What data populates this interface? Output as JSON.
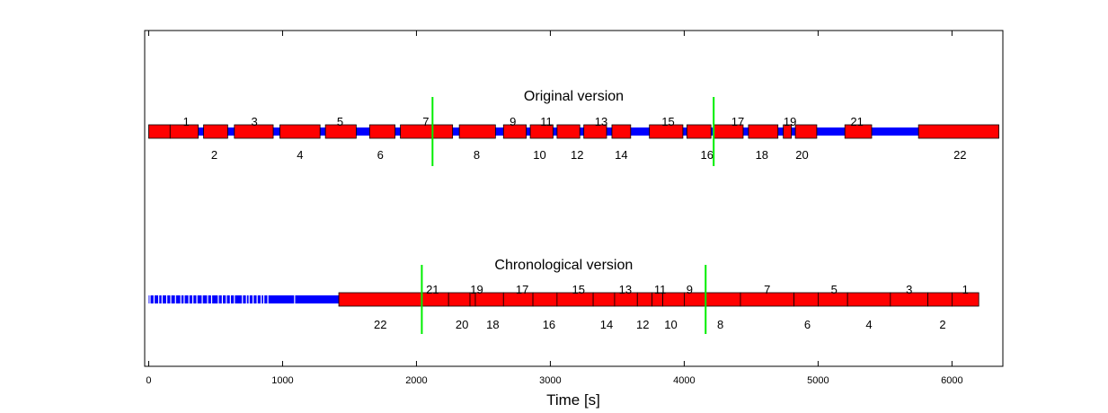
{
  "chart_data": {
    "type": "timeline",
    "xlabel": "Time [s]",
    "xlim": [
      -30,
      6380
    ],
    "xticks": [
      0,
      1000,
      2000,
      3000,
      4000,
      5000,
      6000
    ],
    "xtick_labels": [
      "0",
      "1000",
      "2000",
      "3000",
      "4000",
      "5000",
      "6000"
    ],
    "colors": {
      "segment": "#ff0000",
      "gap": "#0000ff",
      "marker": "#00ee00",
      "frame": "#000000",
      "background": "#ffffff"
    },
    "tracks": [
      {
        "name": "Original version",
        "extent": [
          0,
          6350
        ],
        "segments": [
          {
            "id": "1",
            "start": 0,
            "end": 160
          },
          {
            "id": "2",
            "start": 160,
            "end": 370
          },
          {
            "id": "3",
            "start": 410,
            "end": 590
          },
          {
            "id": "4",
            "start": 640,
            "end": 930
          },
          {
            "id": "5",
            "start": 980,
            "end": 1280
          },
          {
            "id": "6",
            "start": 1320,
            "end": 1550
          },
          {
            "id": "7",
            "start": 1650,
            "end": 1840
          },
          {
            "id": "8",
            "start": 1880,
            "end": 2270
          },
          {
            "id": "9",
            "start": 2320,
            "end": 2590
          },
          {
            "id": "10",
            "start": 2650,
            "end": 2820
          },
          {
            "id": "11",
            "start": 2850,
            "end": 3020
          },
          {
            "id": "12",
            "start": 3050,
            "end": 3220
          },
          {
            "id": "13",
            "start": 3250,
            "end": 3420
          },
          {
            "id": "14",
            "start": 3460,
            "end": 3600
          },
          {
            "id": "15",
            "start": 3740,
            "end": 3990
          },
          {
            "id": "16",
            "start": 4020,
            "end": 4200
          },
          {
            "id": "17",
            "start": 4220,
            "end": 4440
          },
          {
            "id": "18",
            "start": 4480,
            "end": 4700
          },
          {
            "id": "19",
            "start": 4740,
            "end": 4800
          },
          {
            "id": "20",
            "start": 4830,
            "end": 4990
          },
          {
            "id": "21",
            "start": 5200,
            "end": 5400
          },
          {
            "id": "22",
            "start": 5750,
            "end": 6350
          }
        ],
        "labels_above": [
          {
            "text": "1",
            "x": 280
          },
          {
            "text": "3",
            "x": 790
          },
          {
            "text": "5",
            "x": 1430
          },
          {
            "text": "7",
            "x": 2070
          },
          {
            "text": "9",
            "x": 2720
          },
          {
            "text": "11",
            "x": 2970
          },
          {
            "text": "13",
            "x": 3380
          },
          {
            "text": "15",
            "x": 3880
          },
          {
            "text": "17",
            "x": 4400
          },
          {
            "text": "19",
            "x": 4790
          },
          {
            "text": "21",
            "x": 5290
          }
        ],
        "labels_below": [
          {
            "text": "2",
            "x": 490
          },
          {
            "text": "4",
            "x": 1130
          },
          {
            "text": "6",
            "x": 1730
          },
          {
            "text": "8",
            "x": 2450
          },
          {
            "text": "10",
            "x": 2920
          },
          {
            "text": "12",
            "x": 3200
          },
          {
            "text": "14",
            "x": 3530
          },
          {
            "text": "16",
            "x": 4170
          },
          {
            "text": "18",
            "x": 4580
          },
          {
            "text": "20",
            "x": 4880
          },
          {
            "text": "22",
            "x": 6060
          }
        ],
        "markers": [
          2120,
          4220
        ]
      },
      {
        "name": "Chronological version",
        "extent": [
          0,
          6200
        ],
        "gap_ticks": [
          10,
          40,
          75,
          100,
          135,
          165,
          200,
          240,
          265,
          300,
          330,
          360,
          400,
          440,
          470,
          520,
          550,
          580,
          610,
          640,
          700,
          730,
          750,
          780,
          810,
          840,
          860,
          890,
          1090
        ],
        "segments": [
          {
            "id": "22",
            "start": 1420,
            "end": 2240
          },
          {
            "id": "21",
            "start": 2240,
            "end": 2400
          },
          {
            "id": "20",
            "start": 2400,
            "end": 2440
          },
          {
            "id": "19",
            "start": 2440,
            "end": 2650
          },
          {
            "id": "18",
            "start": 2650,
            "end": 2870
          },
          {
            "id": "17",
            "start": 2870,
            "end": 3050
          },
          {
            "id": "16",
            "start": 3050,
            "end": 3320
          },
          {
            "id": "15",
            "start": 3320,
            "end": 3480
          },
          {
            "id": "14",
            "start": 3480,
            "end": 3650
          },
          {
            "id": "13",
            "start": 3650,
            "end": 3760
          },
          {
            "id": "12",
            "start": 3760,
            "end": 3840
          },
          {
            "id": "11",
            "start": 3840,
            "end": 4000
          },
          {
            "id": "10",
            "start": 4000,
            "end": 4420
          },
          {
            "id": "9",
            "start": 4420,
            "end": 4820
          },
          {
            "id": "8",
            "start": 4820,
            "end": 5000
          },
          {
            "id": "7",
            "start": 5000,
            "end": 5220
          },
          {
            "id": "6",
            "start": 5220,
            "end": 5540
          },
          {
            "id": "5",
            "start": 5540,
            "end": 5820
          },
          {
            "id": "4",
            "start": 5820,
            "end": 6000
          },
          {
            "id": "3",
            "start": 6000,
            "end": 6200
          }
        ],
        "labels_above": [
          {
            "text": "21",
            "x": 2120
          },
          {
            "text": "19",
            "x": 2450
          },
          {
            "text": "17",
            "x": 2790
          },
          {
            "text": "15",
            "x": 3210
          },
          {
            "text": "13",
            "x": 3560
          },
          {
            "text": "11",
            "x": 3820
          },
          {
            "text": "9",
            "x": 4040
          },
          {
            "text": "7",
            "x": 4620
          },
          {
            "text": "5",
            "x": 5120
          },
          {
            "text": "3",
            "x": 5680
          },
          {
            "text": "1",
            "x": 6100
          }
        ],
        "labels_below": [
          {
            "text": "22",
            "x": 1730
          },
          {
            "text": "20",
            "x": 2340
          },
          {
            "text": "18",
            "x": 2570
          },
          {
            "text": "16",
            "x": 2990
          },
          {
            "text": "14",
            "x": 3420
          },
          {
            "text": "12",
            "x": 3690
          },
          {
            "text": "10",
            "x": 3900
          },
          {
            "text": "8",
            "x": 4270
          },
          {
            "text": "6",
            "x": 4920
          },
          {
            "text": "4",
            "x": 5380
          },
          {
            "text": "2",
            "x": 5930
          }
        ],
        "markers": [
          2040,
          4160
        ]
      }
    ]
  }
}
